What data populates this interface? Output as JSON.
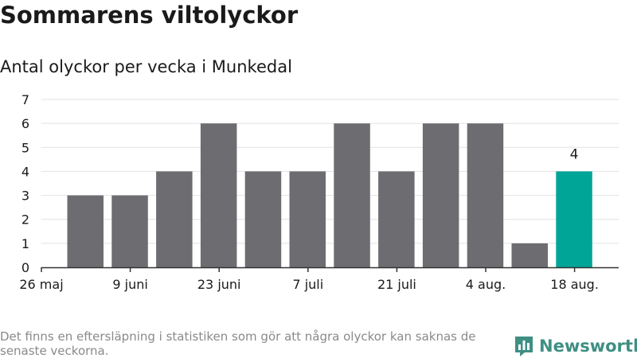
{
  "title": "Sommarens viltolyckor",
  "subtitle": "Antal olyckor per vecka i Munkedal",
  "footnote": "Det finns en eftersläpning i statistiken som gör att några olyckor kan saknas de senaste veckorna.",
  "brand": {
    "name": "Newsworthy",
    "icon": "bar-chart-logo-icon",
    "color": "#3f8f83"
  },
  "chart_data": {
    "type": "bar",
    "x_tick_labels": [
      "26 maj",
      "9 juni",
      "23 juni",
      "7 juli",
      "21 juli",
      "4 aug.",
      "18 aug."
    ],
    "values": [
      3,
      3,
      4,
      6,
      4,
      4,
      6,
      4,
      6,
      6,
      1,
      4
    ],
    "highlight_index": 11,
    "data_labels": [
      {
        "index": 11,
        "text": "4"
      }
    ],
    "y_ticks": [
      0,
      1,
      2,
      3,
      4,
      5,
      6,
      7
    ],
    "ylim": [
      0,
      7
    ],
    "grid": true,
    "colors": {
      "bar": "#6d6c71",
      "highlight": "#00a597",
      "grid": "#e2e2e2",
      "axis": "#333333"
    },
    "xlabel": "",
    "ylabel": ""
  }
}
